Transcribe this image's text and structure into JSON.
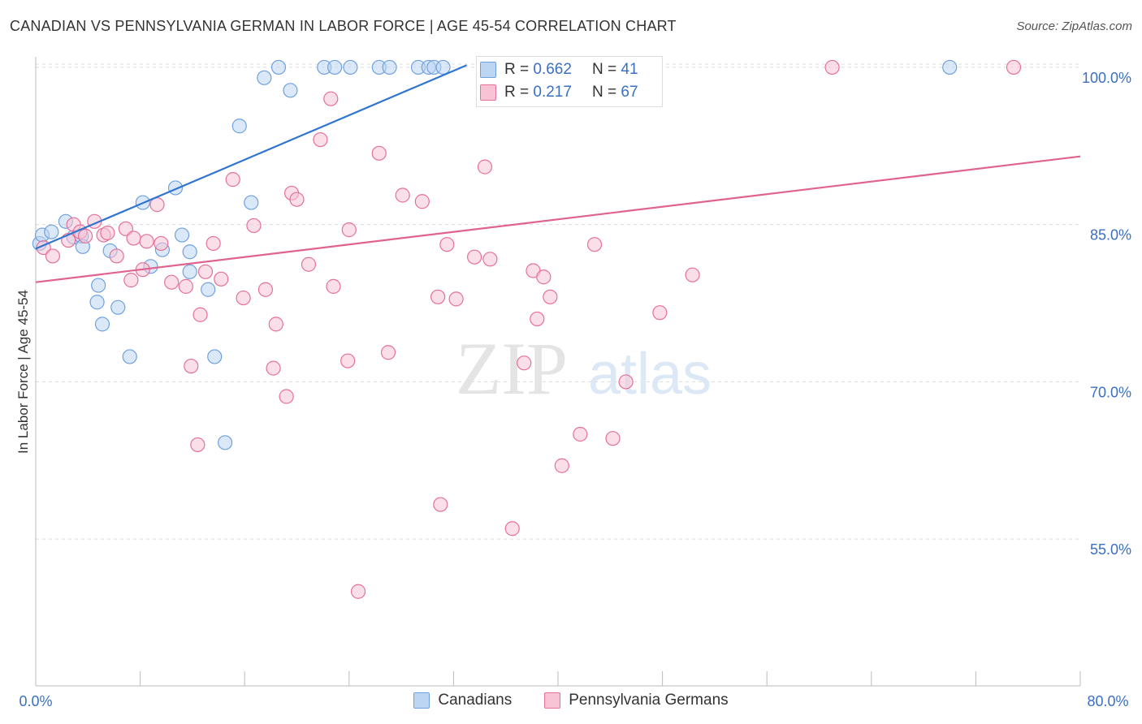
{
  "title": "CANADIAN VS PENNSYLVANIA GERMAN IN LABOR FORCE | AGE 45-54 CORRELATION CHART",
  "source": "Source: ZipAtlas.com",
  "watermark": {
    "zip": "ZIP",
    "atlas": "atlas"
  },
  "stats": [
    {
      "r_label": "R =",
      "r_value": "0.662",
      "n_label": "N =",
      "n_value": "41",
      "color": "#a8c8f0"
    },
    {
      "r_label": "R =",
      "r_value": "0.217",
      "n_label": "N =",
      "n_value": "67",
      "color": "#f5b8cb"
    }
  ],
  "legend": [
    {
      "label": "Canadians",
      "color": "#a8c8f0"
    },
    {
      "label": "Pennsylvania Germans",
      "color": "#f5b8cb"
    }
  ],
  "chart_data": {
    "type": "scatter",
    "title": "CANADIAN VS PENNSYLVANIA GERMAN IN LABOR FORCE | AGE 45-54 CORRELATION CHART",
    "xlabel": "",
    "ylabel": "In Labor Force | Age 45-54",
    "xlim": [
      0,
      80
    ],
    "ylim": [
      41,
      101
    ],
    "x_tick_labels": [
      "0.0%",
      "80.0%"
    ],
    "y_ticks": [
      55,
      70,
      85,
      100
    ],
    "y_tick_labels": [
      "55.0%",
      "70.0%",
      "85.0%",
      "100.0%"
    ],
    "grid": true,
    "legend_position": "bottom",
    "series": [
      {
        "name": "Canadians",
        "color": "#6fa1e0",
        "fill": "#bcd5f3",
        "trend": [
          [
            0,
            82.7
          ],
          [
            33,
            100.2
          ]
        ],
        "points": [
          [
            0.3,
            83.2
          ],
          [
            0.5,
            84.0
          ],
          [
            1.2,
            84.3
          ],
          [
            2.3,
            85.3
          ],
          [
            2.9,
            83.8
          ],
          [
            3.5,
            83.9
          ],
          [
            3.6,
            82.9
          ],
          [
            5.7,
            82.5
          ],
          [
            4.7,
            77.6
          ],
          [
            4.8,
            79.2
          ],
          [
            5.1,
            75.5
          ],
          [
            6.3,
            77.1
          ],
          [
            7.2,
            72.4
          ],
          [
            8.2,
            87.1
          ],
          [
            8.8,
            81.0
          ],
          [
            9.7,
            82.6
          ],
          [
            10.7,
            88.5
          ],
          [
            11.2,
            84.0
          ],
          [
            11.8,
            80.5
          ],
          [
            11.8,
            82.4
          ],
          [
            13.2,
            78.8
          ],
          [
            13.7,
            72.4
          ],
          [
            14.5,
            64.2
          ],
          [
            15.6,
            94.4
          ],
          [
            16.5,
            87.1
          ],
          [
            17.5,
            99.0
          ],
          [
            18.6,
            100.0
          ],
          [
            19.5,
            97.8
          ],
          [
            22.1,
            100.0
          ],
          [
            22.9,
            100.0
          ],
          [
            24.1,
            100.0
          ],
          [
            26.3,
            100.0
          ],
          [
            27.1,
            100.0
          ],
          [
            29.3,
            100.0
          ],
          [
            30.1,
            100.0
          ],
          [
            30.5,
            100.0
          ],
          [
            31.2,
            100.0
          ],
          [
            35.1,
            100.0
          ],
          [
            38.2,
            100.0
          ],
          [
            39.5,
            100.0
          ],
          [
            70.0,
            100.0
          ]
        ]
      },
      {
        "name": "Pennsylvania Germans",
        "color": "#e57098",
        "fill": "#f8c4d5",
        "trend": [
          [
            0,
            79.5
          ],
          [
            80,
            91.5
          ]
        ],
        "points": [
          [
            0.6,
            82.8
          ],
          [
            1.3,
            82.0
          ],
          [
            2.5,
            83.5
          ],
          [
            2.9,
            85.0
          ],
          [
            3.4,
            84.3
          ],
          [
            3.8,
            83.9
          ],
          [
            4.5,
            85.3
          ],
          [
            5.2,
            84.0
          ],
          [
            5.5,
            84.2
          ],
          [
            6.2,
            82.0
          ],
          [
            6.9,
            84.6
          ],
          [
            7.3,
            79.7
          ],
          [
            7.5,
            83.7
          ],
          [
            8.2,
            80.7
          ],
          [
            8.5,
            83.4
          ],
          [
            9.3,
            86.9
          ],
          [
            9.6,
            83.2
          ],
          [
            10.4,
            79.5
          ],
          [
            11.5,
            79.1
          ],
          [
            11.9,
            71.5
          ],
          [
            12.4,
            64.0
          ],
          [
            12.6,
            76.4
          ],
          [
            13.0,
            80.5
          ],
          [
            13.6,
            83.2
          ],
          [
            14.2,
            79.8
          ],
          [
            15.1,
            89.3
          ],
          [
            15.9,
            78.0
          ],
          [
            16.7,
            84.9
          ],
          [
            17.6,
            78.8
          ],
          [
            18.2,
            71.3
          ],
          [
            18.4,
            75.5
          ],
          [
            19.2,
            68.6
          ],
          [
            19.6,
            88.0
          ],
          [
            20.0,
            87.4
          ],
          [
            20.9,
            81.2
          ],
          [
            21.8,
            93.1
          ],
          [
            22.6,
            97.0
          ],
          [
            22.8,
            79.1
          ],
          [
            23.9,
            72.0
          ],
          [
            24.0,
            84.5
          ],
          [
            24.7,
            50.0
          ],
          [
            26.3,
            91.8
          ],
          [
            27.0,
            72.8
          ],
          [
            28.1,
            87.8
          ],
          [
            29.6,
            87.2
          ],
          [
            30.8,
            78.1
          ],
          [
            31.0,
            58.3
          ],
          [
            31.5,
            83.1
          ],
          [
            32.2,
            77.9
          ],
          [
            33.6,
            81.9
          ],
          [
            34.4,
            90.5
          ],
          [
            34.8,
            81.7
          ],
          [
            36.5,
            56.0
          ],
          [
            37.4,
            71.8
          ],
          [
            38.1,
            80.6
          ],
          [
            38.4,
            76.0
          ],
          [
            38.9,
            80.0
          ],
          [
            39.4,
            78.1
          ],
          [
            40.3,
            62.0
          ],
          [
            41.7,
            65.0
          ],
          [
            42.8,
            83.1
          ],
          [
            44.2,
            64.6
          ],
          [
            45.2,
            70.0
          ],
          [
            47.8,
            76.6
          ],
          [
            50.3,
            80.2
          ],
          [
            61.0,
            100.0
          ],
          [
            74.9,
            100.0
          ]
        ]
      }
    ]
  }
}
